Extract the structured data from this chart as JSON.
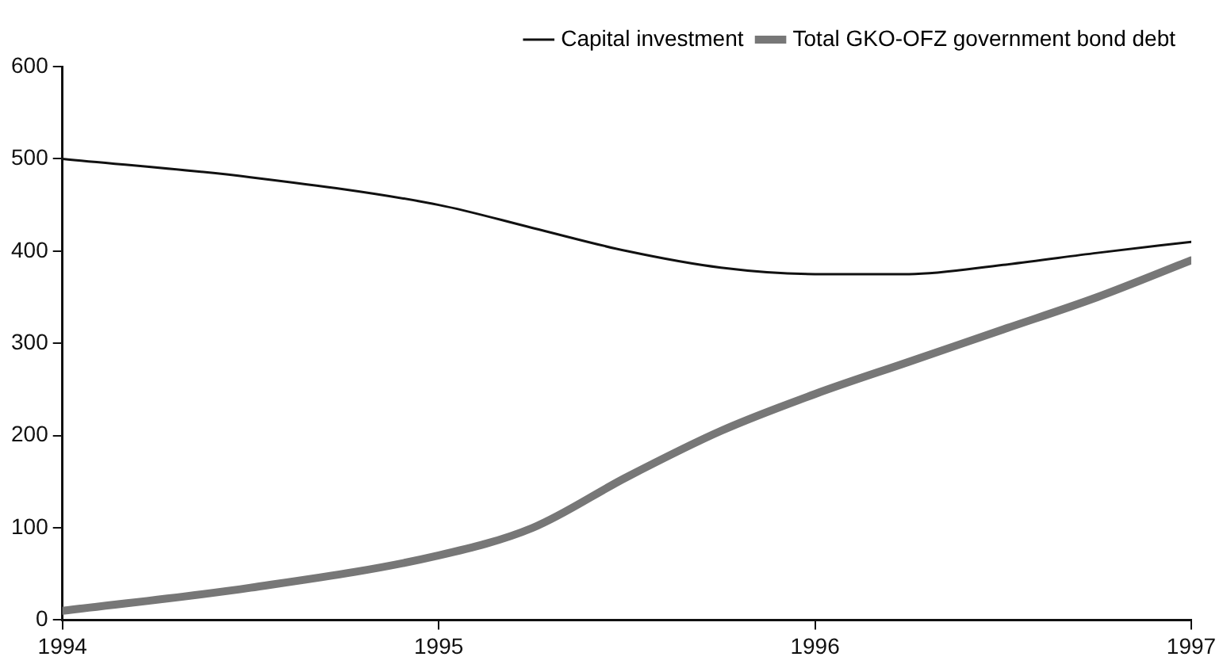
{
  "chart_data": {
    "type": "line",
    "x": [
      1994,
      1994.5,
      1995,
      1995.25,
      1995.5,
      1995.75,
      1996,
      1996.25,
      1996.5,
      1996.75,
      1997
    ],
    "xlim": [
      1994,
      1997
    ],
    "xticks": [
      1994,
      1995,
      1996,
      1997
    ],
    "ylim": [
      0,
      600
    ],
    "yticks": [
      0,
      100,
      200,
      300,
      400,
      500,
      600
    ],
    "grid": false,
    "legend": "top right",
    "marker": "none",
    "line_style": "solid",
    "series": [
      {
        "name": "Capital investment",
        "color": "#111111",
        "values": [
          500,
          480,
          450,
          425,
          400,
          382,
          375,
          375,
          385,
          398,
          410
        ]
      },
      {
        "name": "Total GKO-OFZ government bond debt",
        "color": "#777777",
        "values": [
          10,
          35,
          70,
          100,
          155,
          205,
          245,
          280,
          315,
          350,
          390
        ]
      }
    ]
  }
}
